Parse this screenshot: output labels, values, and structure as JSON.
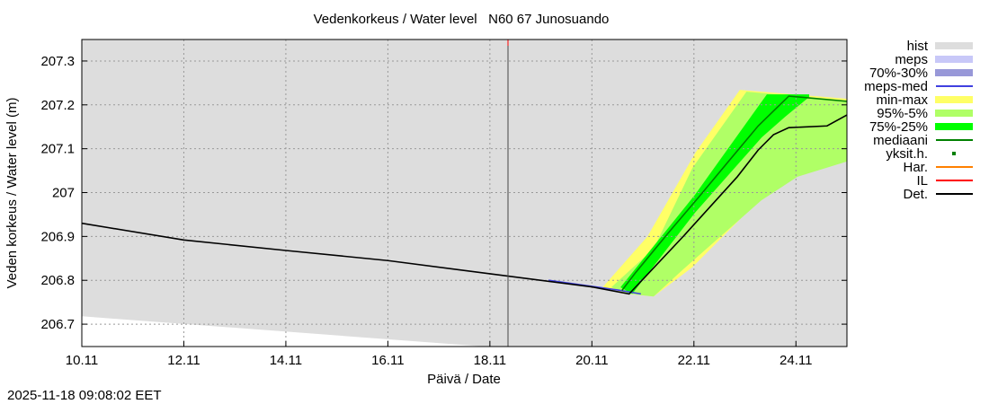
{
  "chart_data": {
    "type": "area",
    "title": "Vedenkorkeus / Water level   N60 67 Junosuando",
    "xlabel": "Päivä / Date",
    "ylabel": "Veden korkeus / Water level (m)",
    "timestamp": "2025-11-18 09:08:02 EET",
    "xlim": [
      10,
      25
    ],
    "ylim": [
      206.649,
      207.349
    ],
    "grid": true,
    "x_unit": "day of November",
    "x_ticks": [
      {
        "v": 10,
        "label": "10.11"
      },
      {
        "v": 12,
        "label": "12.11"
      },
      {
        "v": 14,
        "label": "14.11"
      },
      {
        "v": 16,
        "label": "16.11"
      },
      {
        "v": 18,
        "label": "18.11"
      },
      {
        "v": 20,
        "label": "20.11"
      },
      {
        "v": 22,
        "label": "22.11"
      },
      {
        "v": 24,
        "label": "24.11"
      }
    ],
    "y_ticks": [
      {
        "v": 206.7,
        "label": "206.7"
      },
      {
        "v": 206.8,
        "label": "206.8"
      },
      {
        "v": 206.9,
        "label": "206.9"
      },
      {
        "v": 207.0,
        "label": "207"
      },
      {
        "v": 207.1,
        "label": "207.1"
      },
      {
        "v": 207.2,
        "label": "207.2"
      },
      {
        "v": 207.3,
        "label": "207.3"
      }
    ],
    "now_marker": 18.355,
    "legend_position": "right",
    "legend": [
      {
        "label": "hist",
        "color": "#dddddd",
        "kind": "band"
      },
      {
        "label": "meps",
        "color": "#c8c8f8",
        "kind": "band"
      },
      {
        "label": "70%-30%",
        "color": "#9898d8",
        "kind": "band"
      },
      {
        "label": "meps-med",
        "color": "#4040e0",
        "kind": "line"
      },
      {
        "label": "min-max",
        "color": "#ffff66",
        "kind": "band"
      },
      {
        "label": "95%-5%",
        "color": "#b0ff66",
        "kind": "band"
      },
      {
        "label": "75%-25%",
        "color": "#00ff00",
        "kind": "band"
      },
      {
        "label": "mediaani",
        "color": "#008000",
        "kind": "line"
      },
      {
        "label": "yksit.h.",
        "color": "#008000",
        "kind": "point"
      },
      {
        "label": "Har.",
        "color": "#ff8000",
        "kind": "line"
      },
      {
        "label": "IL",
        "color": "#ff0000",
        "kind": "line"
      },
      {
        "label": "Det.",
        "color": "#000000",
        "kind": "line"
      }
    ],
    "hist_lower": [
      [
        10,
        206.718
      ],
      [
        17.9,
        206.649
      ]
    ],
    "bands": {
      "min-max": {
        "upper": [
          [
            20.21,
            206.784
          ],
          [
            21.09,
            206.9
          ],
          [
            22.03,
            207.091
          ],
          [
            22.9,
            207.234
          ],
          [
            25,
            207.214
          ]
        ],
        "lower": [
          [
            20.73,
            206.769
          ],
          [
            21.21,
            206.763
          ],
          [
            21.97,
            206.83
          ],
          [
            23.38,
            206.995
          ],
          [
            24.03,
            207.044
          ],
          [
            25,
            207.077
          ]
        ]
      },
      "95%-5%": {
        "upper": [
          [
            20.38,
            206.784
          ],
          [
            21.21,
            206.872
          ],
          [
            21.97,
            207.056
          ],
          [
            23.03,
            207.23
          ],
          [
            25,
            207.21
          ]
        ],
        "lower": [
          [
            20.73,
            206.769
          ],
          [
            21.21,
            206.763
          ],
          [
            21.79,
            206.825
          ],
          [
            23.32,
            206.982
          ],
          [
            24.03,
            207.036
          ],
          [
            25,
            207.071
          ]
        ]
      },
      "75%-25%": {
        "upper": [
          [
            20.56,
            206.784
          ],
          [
            22.02,
            206.995
          ],
          [
            23.43,
            207.224
          ],
          [
            24.26,
            207.224
          ]
        ],
        "lower": [
          [
            20.79,
            206.769
          ],
          [
            22.02,
            206.954
          ],
          [
            23.33,
            207.126
          ],
          [
            23.79,
            207.173
          ],
          [
            24.26,
            207.218
          ]
        ]
      }
    },
    "series": [
      {
        "name": "mediaani",
        "points": [
          [
            20.59,
            206.777
          ],
          [
            20.86,
            206.818
          ],
          [
            21.49,
            206.907
          ],
          [
            22.09,
            206.989
          ],
          [
            22.67,
            207.07
          ],
          [
            23.26,
            207.152
          ],
          [
            23.86,
            207.22
          ],
          [
            25,
            207.208
          ]
        ]
      },
      {
        "name": "meps-med",
        "points": [
          [
            19.15,
            206.8
          ],
          [
            20.5,
            206.778
          ],
          [
            20.96,
            206.769
          ]
        ]
      },
      {
        "name": "Det.",
        "points": [
          [
            10,
            206.93
          ],
          [
            12,
            206.892
          ],
          [
            14,
            206.868
          ],
          [
            16,
            206.845
          ],
          [
            18,
            206.815
          ],
          [
            20,
            206.785
          ],
          [
            20.73,
            206.769
          ],
          [
            21.79,
            206.9
          ],
          [
            22.85,
            207.036
          ],
          [
            23.26,
            207.097
          ],
          [
            23.56,
            207.132
          ],
          [
            23.86,
            207.148
          ],
          [
            24.61,
            207.152
          ],
          [
            25,
            207.177
          ]
        ]
      }
    ]
  }
}
